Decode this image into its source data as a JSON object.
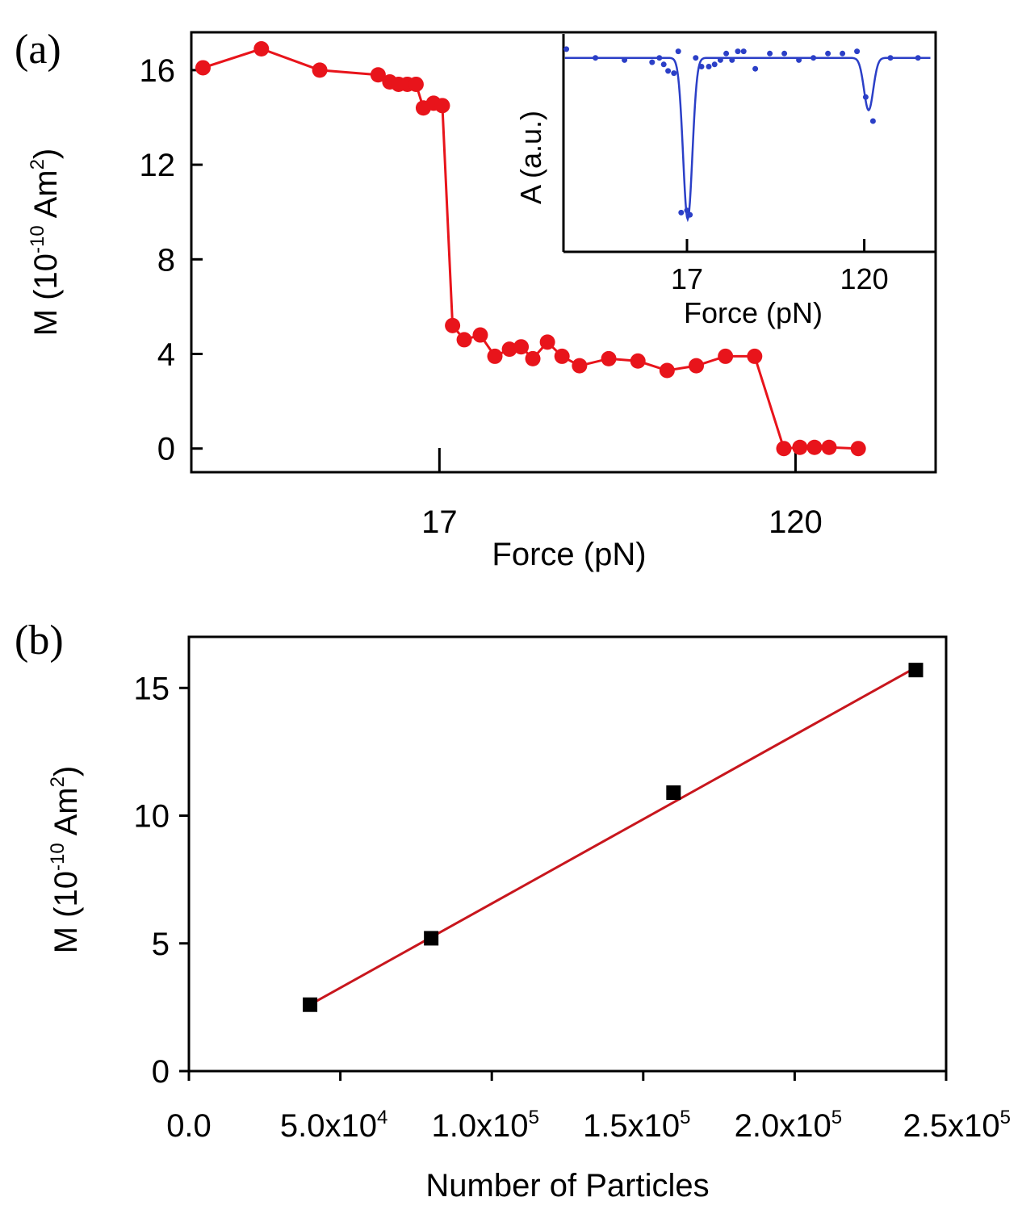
{
  "chart_data": [
    {
      "panel": "(a)",
      "type": "line",
      "xlabel": "Force (pN)",
      "ylabel_main": "M (10",
      "ylabel_exp": "-10",
      "ylabel_unit": " Am",
      "ylabel_unit_exp": "2",
      "ylabel_close": ")",
      "ylim": [
        -1,
        17.6
      ],
      "xlim": [
        0,
        25.5
      ],
      "yticks": [
        "0",
        "4",
        "8",
        "12",
        "16"
      ],
      "ytick_values": [
        0,
        4,
        8,
        12,
        16
      ],
      "xticks": [
        {
          "label": "17",
          "x": 8.5
        },
        {
          "label": "120",
          "x": 20.7
        }
      ],
      "series": [
        {
          "name": "M",
          "color": "#e8141b",
          "x": [
            0.4,
            2.4,
            4.4,
            6.4,
            6.8,
            7.1,
            7.4,
            7.7,
            7.95,
            8.3,
            8.6,
            8.95,
            9.35,
            9.9,
            10.4,
            10.9,
            11.3,
            11.7,
            12.2,
            12.7,
            13.3,
            14.3,
            15.3,
            16.3,
            17.3,
            18.3,
            19.3,
            20.3,
            20.85,
            21.35,
            21.85,
            22.85
          ],
          "y": [
            16.1,
            16.9,
            16.0,
            15.8,
            15.5,
            15.4,
            15.4,
            15.4,
            14.4,
            14.6,
            14.5,
            5.2,
            4.6,
            4.8,
            3.9,
            4.2,
            4.3,
            3.8,
            4.5,
            3.9,
            3.5,
            3.8,
            3.7,
            3.3,
            3.5,
            3.9,
            3.9,
            0.0,
            0.05,
            0.05,
            0.05,
            0.0
          ]
        }
      ],
      "inset": {
        "type": "line",
        "ylabel": "A (a.u.)",
        "xlabel": "Force (pN)",
        "color": "#2b3fc7",
        "xticks": [
          {
            "label": "17",
            "x": 8.5
          },
          {
            "label": "120",
            "x": 20.7
          }
        ],
        "xlim": [
          0,
          25.5
        ],
        "ylim": [
          0,
          1
        ],
        "points_x": [
          0.2,
          2.2,
          4.2,
          6.1,
          6.6,
          6.9,
          7.2,
          7.6,
          7.9,
          8.1,
          8.5,
          8.7,
          9.1,
          9.5,
          10.0,
          10.4,
          10.8,
          11.2,
          11.6,
          12.0,
          12.4,
          13.2,
          14.2,
          15.2,
          16.2,
          17.2,
          18.2,
          19.2,
          20.2,
          20.8,
          21.3,
          22.5,
          24.4
        ],
        "points_y": [
          0.93,
          0.89,
          0.88,
          0.87,
          0.89,
          0.86,
          0.83,
          0.82,
          0.92,
          0.18,
          0.19,
          0.17,
          0.89,
          0.85,
          0.85,
          0.86,
          0.88,
          0.91,
          0.88,
          0.92,
          0.92,
          0.84,
          0.91,
          0.91,
          0.88,
          0.89,
          0.91,
          0.91,
          0.92,
          0.71,
          0.6,
          0.89,
          0.89
        ],
        "curve_baseline": 0.89,
        "dips": [
          {
            "center": 8.55,
            "depth": 0.74,
            "width": 0.45
          },
          {
            "center": 21.0,
            "depth": 0.24,
            "width": 0.45
          }
        ]
      }
    },
    {
      "panel": "(b)",
      "type": "scatter",
      "xlabel": "Number of Particles",
      "ylabel_main": "M (10",
      "ylabel_exp": "-10",
      "ylabel_unit": " Am",
      "ylabel_unit_exp": "2",
      "ylabel_close": ")",
      "xlim": [
        0,
        250000
      ],
      "ylim": [
        0,
        17
      ],
      "yticks": [
        "0",
        "5",
        "10",
        "15"
      ],
      "ytick_values": [
        0,
        5,
        10,
        15
      ],
      "xticks": [
        {
          "mant": "0.0",
          "exp": "",
          "x": 0
        },
        {
          "mant": "5.0x10",
          "exp": "4",
          "x": 50000
        },
        {
          "mant": "1.0x10",
          "exp": "5",
          "x": 100000
        },
        {
          "mant": "1.5x10",
          "exp": "5",
          "x": 150000
        },
        {
          "mant": "2.0x10",
          "exp": "5",
          "x": 200000
        },
        {
          "mant": "2.5x10",
          "exp": "5",
          "x": 250000
        }
      ],
      "series": [
        {
          "name": "data",
          "color": "#000000",
          "x": [
            40000,
            80000,
            160000,
            240000
          ],
          "y": [
            2.6,
            5.2,
            10.9,
            15.7
          ]
        }
      ],
      "fit": {
        "color": "#c8161d",
        "x": [
          40000,
          240000
        ],
        "y": [
          2.6,
          15.8
        ]
      }
    }
  ]
}
